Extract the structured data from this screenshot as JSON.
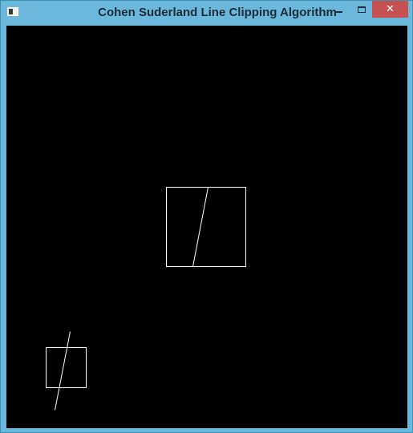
{
  "window": {
    "title": "Cohen Suderland Line Clipping Algorithm",
    "icon": "app-window-icon",
    "controls": {
      "minimize_icon": "minimize-icon",
      "maximize_icon": "maximize-icon",
      "close_glyph": "✕",
      "close_color": "#c75050"
    },
    "frame_color": "#6cb8dc",
    "canvas_color": "#000000",
    "stroke_color": "#ffffff"
  }
}
